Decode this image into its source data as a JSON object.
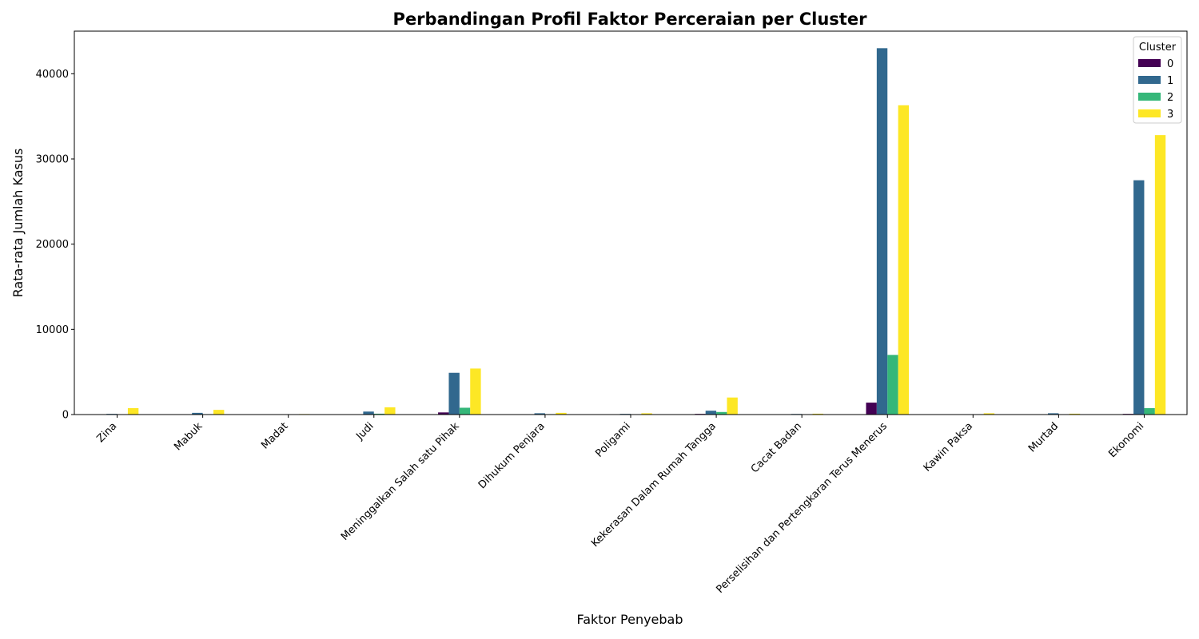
{
  "chart_data": {
    "type": "bar",
    "title": "Perbandingan Profil Faktor Perceraian per Cluster",
    "xlabel": "Faktor Penyebab",
    "ylabel": "Rata-rata Jumlah Kasus",
    "ylim": [
      0,
      45000
    ],
    "yticks": [
      0,
      10000,
      20000,
      30000,
      40000
    ],
    "grid": false,
    "legend": {
      "title": "Cluster",
      "position": "top-right"
    },
    "categories": [
      "Zina",
      "Mabuk",
      "Madat",
      "Judi",
      "Meninggalkan Salah satu Pihak",
      "Dihukum Penjara",
      "Poligami",
      "Kekerasan Dalam Rumah Tangga",
      "Cacat Badan",
      "Perselisihan dan Pertengkaran Terus Menerus",
      "Kawin Paksa",
      "Murtad",
      "Ekonomi"
    ],
    "series": [
      {
        "name": "0",
        "color": "#440154",
        "values": [
          5,
          5,
          0,
          10,
          250,
          5,
          3,
          80,
          3,
          1400,
          1,
          2,
          80
        ]
      },
      {
        "name": "1",
        "color": "#31688e",
        "values": [
          80,
          200,
          15,
          350,
          4900,
          150,
          80,
          450,
          70,
          43000,
          20,
          150,
          27500
        ]
      },
      {
        "name": "2",
        "color": "#35b779",
        "values": [
          20,
          50,
          3,
          100,
          800,
          50,
          20,
          300,
          15,
          7000,
          5,
          30,
          750
        ]
      },
      {
        "name": "3",
        "color": "#fde725",
        "values": [
          750,
          550,
          60,
          850,
          5400,
          200,
          150,
          2000,
          100,
          36300,
          150,
          100,
          32800
        ]
      }
    ]
  }
}
